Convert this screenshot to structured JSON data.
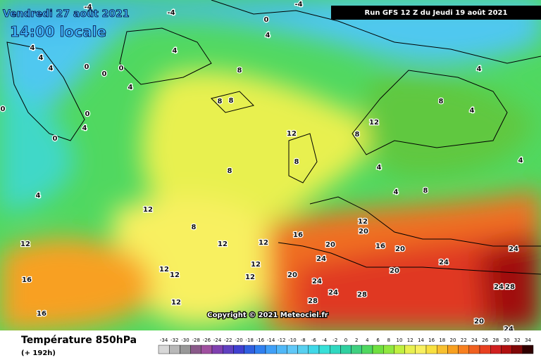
{
  "header": {
    "date": "Vendredi 27 août 2021",
    "time": "14:00 locale",
    "run": "Run GFS 12 Z du Jeudi 19 août 2021"
  },
  "copyright": "Copyright © 2021 Meteociel.fr",
  "legend": {
    "title": "Température 850hPa",
    "subtitle": "(+ 192h)",
    "ticks": [
      -34,
      -32,
      -30,
      -28,
      -26,
      -24,
      -22,
      -20,
      -18,
      -16,
      -14,
      -12,
      -10,
      -8,
      -6,
      -4,
      -2,
      0,
      2,
      4,
      6,
      8,
      10,
      12,
      14,
      16,
      18,
      20,
      22,
      24,
      26,
      28,
      30,
      32,
      34
    ],
    "colors": [
      "#d8d8d8",
      "#b8b8b8",
      "#989898",
      "#8a5a8a",
      "#a050a0",
      "#8040b0",
      "#6040c0",
      "#4040d0",
      "#3060e0",
      "#3080f0",
      "#40a0f8",
      "#50b8f8",
      "#60c8f8",
      "#58d0f0",
      "#40d8e8",
      "#38e0d8",
      "#30d8c0",
      "#30d0a0",
      "#40d080",
      "#50d860",
      "#70e040",
      "#90e840",
      "#c0f040",
      "#e8f050",
      "#f8f060",
      "#f8e040",
      "#f8c030",
      "#f8a020",
      "#f88020",
      "#f06020",
      "#e84020",
      "#d02020",
      "#b01010",
      "#800808",
      "#300000"
    ]
  },
  "contours": [
    -4,
    -4,
    -4,
    0,
    4,
    4,
    4,
    4,
    4,
    0,
    0,
    0,
    4,
    8,
    8,
    8,
    0,
    0,
    4,
    0,
    12,
    12,
    8,
    8,
    4,
    4,
    4,
    8,
    8,
    4,
    4,
    8,
    4,
    12,
    8,
    12,
    12,
    12,
    16,
    12,
    20,
    20,
    16,
    20,
    24,
    24,
    24,
    20,
    20,
    24,
    24,
    28,
    28,
    16,
    12,
    12,
    12,
    12,
    12,
    16,
    24,
    28,
    20,
    24
  ]
}
